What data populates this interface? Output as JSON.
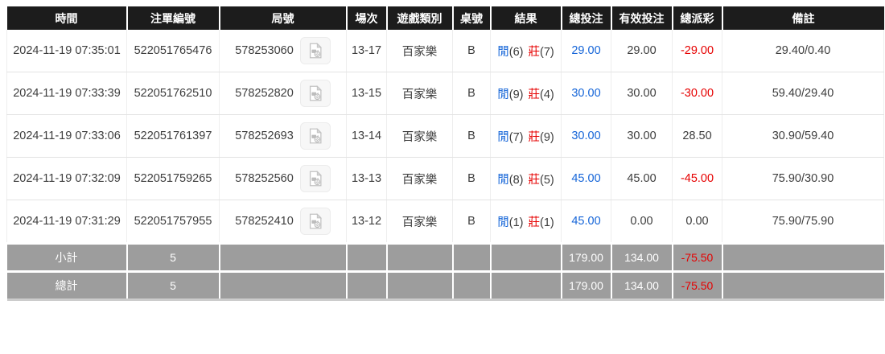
{
  "colors": {
    "header_bg": "#1c1c1c",
    "footer_bg": "#9d9d9d",
    "accent_blue": "#1565d8",
    "accent_red": "#e60000"
  },
  "icons": {
    "video_replay": "video-replay-icon"
  },
  "table": {
    "headers": [
      "時間",
      "注單編號",
      "局號",
      "場次",
      "遊戲類別",
      "桌號",
      "結果",
      "總投注",
      "有效投注",
      "總派彩",
      "備註"
    ],
    "rows": [
      {
        "time": "2024-11-19 07:35:01",
        "bet_id": "522051765476",
        "round": "578253060",
        "session": "13-17",
        "game": "百家樂",
        "table_no": "B",
        "result_player": "閒",
        "result_player_num": "(6)",
        "result_banker": "莊",
        "result_banker_num": "(7)",
        "total_bet": "29.00",
        "valid_bet": "29.00",
        "payout": "-29.00",
        "remark": "29.40/0.40"
      },
      {
        "time": "2024-11-19 07:33:39",
        "bet_id": "522051762510",
        "round": "578252820",
        "session": "13-15",
        "game": "百家樂",
        "table_no": "B",
        "result_player": "閒",
        "result_player_num": "(9)",
        "result_banker": "莊",
        "result_banker_num": "(4)",
        "total_bet": "30.00",
        "valid_bet": "30.00",
        "payout": "-30.00",
        "remark": "59.40/29.40"
      },
      {
        "time": "2024-11-19 07:33:06",
        "bet_id": "522051761397",
        "round": "578252693",
        "session": "13-14",
        "game": "百家樂",
        "table_no": "B",
        "result_player": "閒",
        "result_player_num": "(7)",
        "result_banker": "莊",
        "result_banker_num": "(9)",
        "total_bet": "30.00",
        "valid_bet": "30.00",
        "payout": "28.50",
        "remark": "30.90/59.40"
      },
      {
        "time": "2024-11-19 07:32:09",
        "bet_id": "522051759265",
        "round": "578252560",
        "session": "13-13",
        "game": "百家樂",
        "table_no": "B",
        "result_player": "閒",
        "result_player_num": "(8)",
        "result_banker": "莊",
        "result_banker_num": "(5)",
        "total_bet": "45.00",
        "valid_bet": "45.00",
        "payout": "-45.00",
        "remark": "75.90/30.90"
      },
      {
        "time": "2024-11-19 07:31:29",
        "bet_id": "522051757955",
        "round": "578252410",
        "session": "13-12",
        "game": "百家樂",
        "table_no": "B",
        "result_player": "閒",
        "result_player_num": "(1)",
        "result_banker": "莊",
        "result_banker_num": "(1)",
        "total_bet": "45.00",
        "valid_bet": "0.00",
        "payout": "0.00",
        "remark": "75.90/75.90"
      }
    ],
    "subtotal": {
      "label": "小計",
      "count": "5",
      "total_bet": "179.00",
      "valid_bet": "134.00",
      "payout": "-75.50"
    },
    "grand_total": {
      "label": "總計",
      "count": "5",
      "total_bet": "179.00",
      "valid_bet": "134.00",
      "payout": "-75.50"
    }
  }
}
